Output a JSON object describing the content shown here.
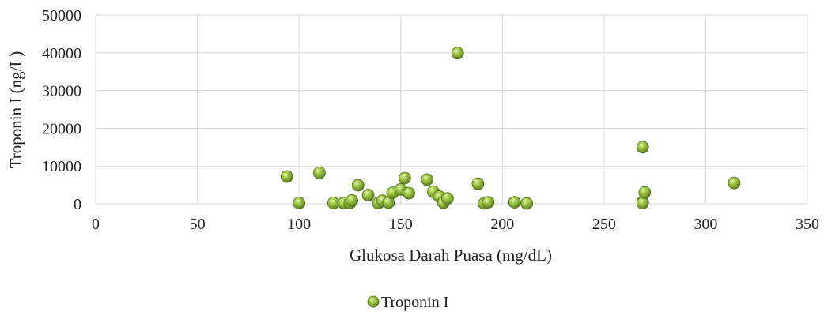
{
  "chart_data": {
    "type": "scatter",
    "title": "",
    "xlabel": "Glukosa Darah Puasa (mg/dL)",
    "ylabel": "Troponin I (ng/L)",
    "xlim": [
      0,
      350
    ],
    "ylim": [
      0,
      50000
    ],
    "xticks": [
      0,
      50,
      100,
      150,
      200,
      250,
      300,
      350
    ],
    "yticks": [
      0,
      10000,
      20000,
      30000,
      40000,
      50000
    ],
    "grid": true,
    "legend_position": "bottom",
    "marker_color": "#8db33a",
    "series": [
      {
        "name": "Troponin I",
        "points": [
          [
            94,
            7200
          ],
          [
            100,
            200
          ],
          [
            110,
            8200
          ],
          [
            117,
            200
          ],
          [
            122,
            200
          ],
          [
            125,
            200
          ],
          [
            126,
            900
          ],
          [
            129,
            4900
          ],
          [
            134,
            2300
          ],
          [
            139,
            200
          ],
          [
            141,
            800
          ],
          [
            144,
            300
          ],
          [
            146,
            2900
          ],
          [
            150,
            3800
          ],
          [
            152,
            6800
          ],
          [
            154,
            2800
          ],
          [
            163,
            6400
          ],
          [
            166,
            3200
          ],
          [
            169,
            1900
          ],
          [
            171,
            300
          ],
          [
            173,
            1400
          ],
          [
            178,
            39900
          ],
          [
            188,
            5300
          ],
          [
            191,
            100
          ],
          [
            193,
            400
          ],
          [
            206,
            400
          ],
          [
            212,
            100
          ],
          [
            269,
            15000
          ],
          [
            269,
            500
          ],
          [
            269,
            200
          ],
          [
            270,
            3000
          ],
          [
            314,
            5500
          ]
        ]
      }
    ]
  }
}
